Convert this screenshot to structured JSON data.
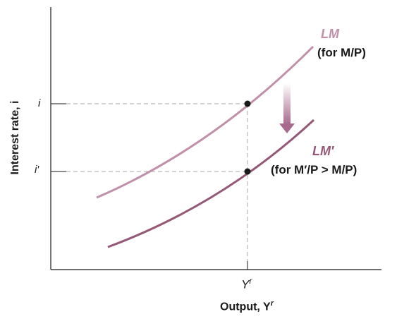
{
  "axes": {
    "y_label": "Interest rate, i",
    "x_label": "Output, Y",
    "x_label_superscript": "r"
  },
  "ticks": {
    "y_high": "i",
    "y_low": "i′",
    "x_base": "Y",
    "x_superscript": "r"
  },
  "curves": {
    "lm": {
      "name": "LM",
      "note": "(for M/P)",
      "color": "#c28fa8"
    },
    "lm_prime": {
      "name": "LM′",
      "note": "(for M′/P > M/P)",
      "color": "#955876"
    }
  },
  "colors": {
    "axis": "#1a1a1a",
    "guide": "#a8a8a8",
    "arrow": "#b27a98",
    "point": "#1a1a1a"
  }
}
